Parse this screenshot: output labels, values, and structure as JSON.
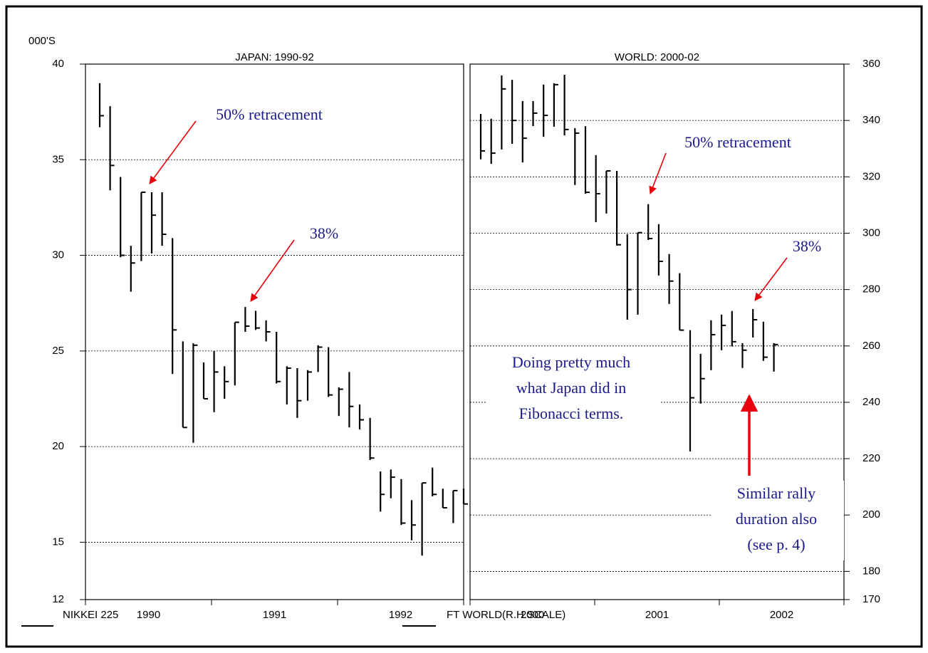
{
  "chart_data": [
    {
      "type": "hlc",
      "title": "JAPAN: 1990-92",
      "unit_label": "000'S",
      "x_labels": [
        "1990",
        "1991",
        "1992"
      ],
      "ylim": [
        12,
        40
      ],
      "yticks": [
        12,
        15,
        20,
        25,
        30,
        35,
        40
      ],
      "grid": true,
      "axis_side": "left",
      "series": [
        {
          "name": "NIKKEI 225",
          "color": "#000000",
          "high": [
            39.0,
            37.8,
            34.1,
            30.5,
            33.3,
            33.3,
            33.3,
            30.9,
            25.5,
            25.4,
            24.4,
            25.0,
            24.2,
            26.5,
            27.3,
            27.1,
            26.6,
            26.0,
            24.2,
            24.1,
            24.0,
            25.3,
            25.2,
            23.1,
            23.9,
            22.2,
            21.5,
            18.7,
            18.8,
            18.3,
            17.2,
            18.1,
            18.9,
            17.8,
            17.7,
            17.8
          ],
          "low": [
            36.7,
            33.4,
            29.9,
            28.1,
            29.7,
            30.1,
            30.5,
            23.8,
            21.0,
            20.2,
            22.5,
            21.8,
            22.5,
            23.2,
            26.0,
            26.1,
            25.5,
            23.3,
            22.2,
            21.5,
            22.4,
            23.9,
            22.6,
            21.6,
            21.0,
            20.9,
            19.3,
            16.6,
            17.3,
            15.9,
            15.1,
            14.3,
            17.4,
            16.8,
            16.0,
            17.0
          ],
          "close": [
            37.3,
            34.7,
            30.0,
            29.6,
            33.3,
            32.1,
            31.1,
            26.1,
            21.0,
            25.3,
            22.5,
            23.9,
            23.4,
            26.5,
            26.3,
            26.2,
            26.0,
            23.4,
            24.1,
            22.4,
            23.9,
            25.2,
            22.7,
            23.0,
            22.1,
            21.4,
            19.4,
            17.5,
            18.4,
            16.0,
            15.9,
            18.1,
            17.5,
            16.8,
            17.7,
            17.0
          ]
        }
      ],
      "annotations": [
        {
          "text": "50% retracement"
        },
        {
          "text": "38%"
        }
      ]
    },
    {
      "type": "hlc",
      "title": "WORLD: 2000-02",
      "x_labels": [
        "2000",
        "2001",
        "2002"
      ],
      "ylim": [
        170,
        360
      ],
      "yticks": [
        170,
        180,
        200,
        220,
        240,
        260,
        280,
        300,
        320,
        340,
        360
      ],
      "grid": true,
      "axis_side": "right",
      "series": [
        {
          "name": "FT WORLD(R.H.SCALE)",
          "color": "#000000",
          "high": [
            342.3,
            340.6,
            356.0,
            354.4,
            346.9,
            346.9,
            352.7,
            353.2,
            356.2,
            337.3,
            338.0,
            327.7,
            322.1,
            322.1,
            299.6,
            300.2,
            310.3,
            303.2,
            292.6,
            285.8,
            265.6,
            257.2,
            269.1,
            271.1,
            272.4,
            261.0,
            273.1,
            268.6,
            261.0
          ],
          "low": [
            326.2,
            324.6,
            329.7,
            331.7,
            325.1,
            338.0,
            334.2,
            337.8,
            334.7,
            317.1,
            314.0,
            303.9,
            307.0,
            295.6,
            269.3,
            271.1,
            297.6,
            285.0,
            274.9,
            265.6,
            222.6,
            239.5,
            251.4,
            258.5,
            259.8,
            252.2,
            263.0,
            254.7,
            250.9
          ],
          "close": [
            329.2,
            328.4,
            351.2,
            340.0,
            333.7,
            342.6,
            341.8,
            352.7,
            336.8,
            335.5,
            314.5,
            314.0,
            322.1,
            295.9,
            280.0,
            300.2,
            298.1,
            290.0,
            283.0,
            265.6,
            241.6,
            248.4,
            264.0,
            267.3,
            261.5,
            258.5,
            269.3,
            256.0,
            260.5
          ]
        }
      ],
      "annotations": [
        {
          "text": "50% retracement"
        },
        {
          "text": "38%"
        },
        {
          "lines": [
            "Doing pretty much",
            "what Japan did in",
            "Fibonacci terms."
          ]
        },
        {
          "lines": [
            "Similar rally",
            "duration also",
            "(see p. 4)"
          ]
        }
      ]
    }
  ]
}
